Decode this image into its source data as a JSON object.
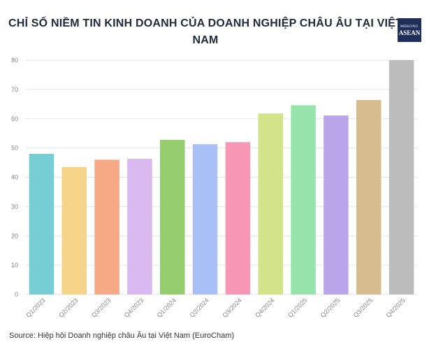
{
  "chart_data": {
    "type": "bar",
    "title": "CHỈ SỐ NIỀM TIN KINH DOANH CỦA DOANH NGHIỆP CHÂU ÂU TẠI VIỆT NAM",
    "categories": [
      "Q1/2023",
      "Q2/2023",
      "Q3/2023",
      "Q4/2023",
      "Q1/2024",
      "Q2/2024",
      "Q3/2024",
      "Q4/2024",
      "Q1/2025",
      "Q2/2025",
      "Q3/2025",
      "Q4/2025"
    ],
    "values": [
      48,
      43.5,
      46,
      46.3,
      52.8,
      51.3,
      52,
      61.8,
      64.6,
      61.1,
      66.4,
      80
    ],
    "colors": [
      "#76cdd3",
      "#f5d48a",
      "#f7a884",
      "#dab9f0",
      "#95cc6e",
      "#a8c0f5",
      "#f896b6",
      "#d3e38a",
      "#96e3ab",
      "#bba5ea",
      "#d7bc8f",
      "#bcbcbc"
    ],
    "ylim": [
      0,
      80
    ],
    "yticks": [
      0,
      10,
      20,
      30,
      40,
      50,
      60,
      70,
      80
    ],
    "grid": true,
    "xlabel": "",
    "ylabel": ""
  },
  "logo": {
    "line1": "MEKONG",
    "line2": "ASEAN"
  },
  "source": "Source: Hiệp hội Doanh nghiệp châu Âu tại Việt Nam (EuroCham)"
}
